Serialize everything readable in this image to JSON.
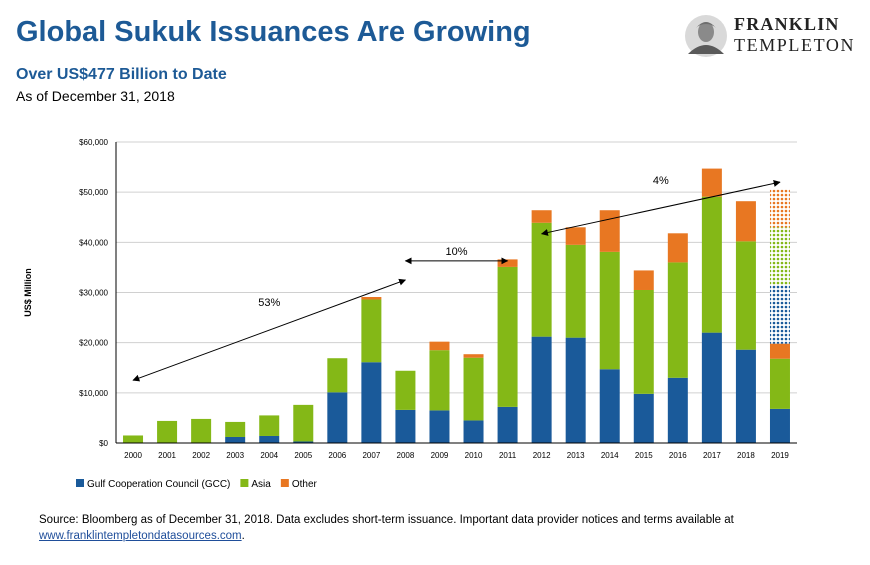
{
  "header": {
    "title": "Global Sukuk Issuances Are Growing",
    "subtitle": "Over US$477 Billion to Date",
    "as_of": "As of December 31, 2018"
  },
  "logo": {
    "line1": "FRANKLIN",
    "line2": "TEMPLETON"
  },
  "source": {
    "text": "Source: Bloomberg as of December 31, 2018. Data excludes short-term issuance. Important data provider notices and terms available at",
    "link": "www.franklintempletondatasources.com",
    "suffix": "."
  },
  "colors": {
    "gcc": "#1a5a9a",
    "asia": "#84b817",
    "other": "#e87722",
    "arrow": "#000000"
  },
  "chart_data": {
    "type": "bar",
    "stacked": true,
    "ylabel": "US$ Million",
    "ylim": [
      0,
      60000
    ],
    "yticks": [
      0,
      10000,
      20000,
      30000,
      40000,
      50000,
      60000
    ],
    "ytick_labels": [
      "$0",
      "$10,000",
      "$20,000",
      "$30,000",
      "$40,000",
      "$50,000",
      "$60,000"
    ],
    "grid": true,
    "legend_position": "bottom-left",
    "categories": [
      "2000",
      "2001",
      "2002",
      "2003",
      "2004",
      "2005",
      "2006",
      "2007",
      "2008",
      "2009",
      "2010",
      "2011",
      "2012",
      "2013",
      "2014",
      "2015",
      "2016",
      "2017",
      "2018",
      "2019"
    ],
    "series": [
      {
        "name": "Gulf Cooperation Council (GCC)",
        "color": "#1a5a9a",
        "values": [
          0,
          0,
          0,
          1200,
          1400,
          300,
          10100,
          16100,
          6600,
          6500,
          4500,
          7200,
          21200,
          21000,
          14700,
          9800,
          13000,
          22000,
          18600,
          6800
        ]
      },
      {
        "name": "Asia",
        "color": "#84b817",
        "values": [
          1500,
          4400,
          4800,
          3000,
          4100,
          7300,
          6800,
          12500,
          7800,
          12000,
          12500,
          27900,
          22700,
          18500,
          23400,
          20700,
          23000,
          27100,
          21600,
          10000
        ]
      },
      {
        "name": "Other",
        "color": "#e87722",
        "values": [
          0,
          0,
          0,
          0,
          0,
          0,
          0,
          500,
          0,
          1700,
          700,
          1500,
          2500,
          3500,
          8300,
          3900,
          5800,
          5600,
          8000,
          3000
        ]
      }
    ],
    "projection_2019": [
      {
        "series": "Gulf Cooperation Council (GCC)",
        "from": 19800,
        "to": 31500
      },
      {
        "series": "Asia",
        "from": 31500,
        "to": 43000
      },
      {
        "series": "Other",
        "from": 43000,
        "to": 50500
      }
    ],
    "annotations": [
      {
        "label": "53%",
        "from": {
          "x": "2000",
          "y": 12500
        },
        "to": {
          "x": "2008",
          "y": 32500
        }
      },
      {
        "label": "10%",
        "from": {
          "x": "2008",
          "y": 36300
        },
        "to": {
          "x": "2011",
          "y": 36300
        }
      },
      {
        "label": "4%",
        "from": {
          "x": "2012",
          "y": 41700
        },
        "to": {
          "x": "2019",
          "y": 52000
        }
      }
    ]
  }
}
